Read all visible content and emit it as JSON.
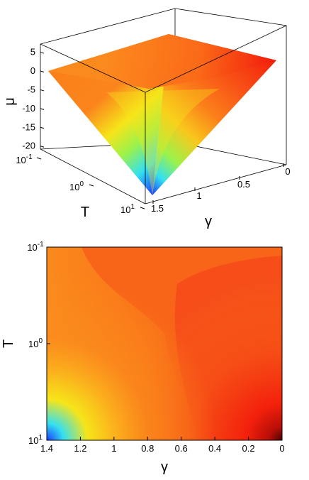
{
  "chart_data": [
    {
      "type": "surface",
      "zlabel": "μ",
      "xlabel": "γ",
      "ylabel": "T",
      "zlim": [
        -22,
        8
      ],
      "x_ticks": [
        "1.5",
        "1",
        "0.5",
        "0"
      ],
      "y_ticks": [
        "10",
        "10",
        "10"
      ],
      "y_tick_exponents": [
        "-1",
        "0",
        "1"
      ],
      "z_ticks": [
        "5",
        "0",
        "-5",
        "-10",
        "-15",
        "-20"
      ],
      "surface_corners": [
        {
          "gamma": 0,
          "T": 0.1,
          "mu": 3
        },
        {
          "gamma": 1.5,
          "T": 0.1,
          "mu": 0
        },
        {
          "gamma": 0,
          "T": 10,
          "mu": 3
        },
        {
          "gamma": 1.5,
          "T": 10,
          "mu": -21
        }
      ],
      "colormap": "jet"
    },
    {
      "type": "heatmap",
      "xlabel": "γ",
      "ylabel": "T",
      "x_ticks": [
        "1.4",
        "1.2",
        "1",
        "0.8",
        "0.6",
        "0.4",
        "0.2",
        "0"
      ],
      "y_ticks": [
        "10",
        "10",
        "10"
      ],
      "y_tick_exponents": [
        "-1",
        "0",
        "1"
      ],
      "x_range": [
        1.4,
        0
      ],
      "y_range": [
        0.1,
        10
      ],
      "colormap": "jet"
    }
  ],
  "colors": {
    "blue": "#1a3cff",
    "cyan": "#34e0f0",
    "yellow": "#f6e51a",
    "orange": "#fb7f1a",
    "red": "#f3200c",
    "dark_red": "#5a0505"
  }
}
